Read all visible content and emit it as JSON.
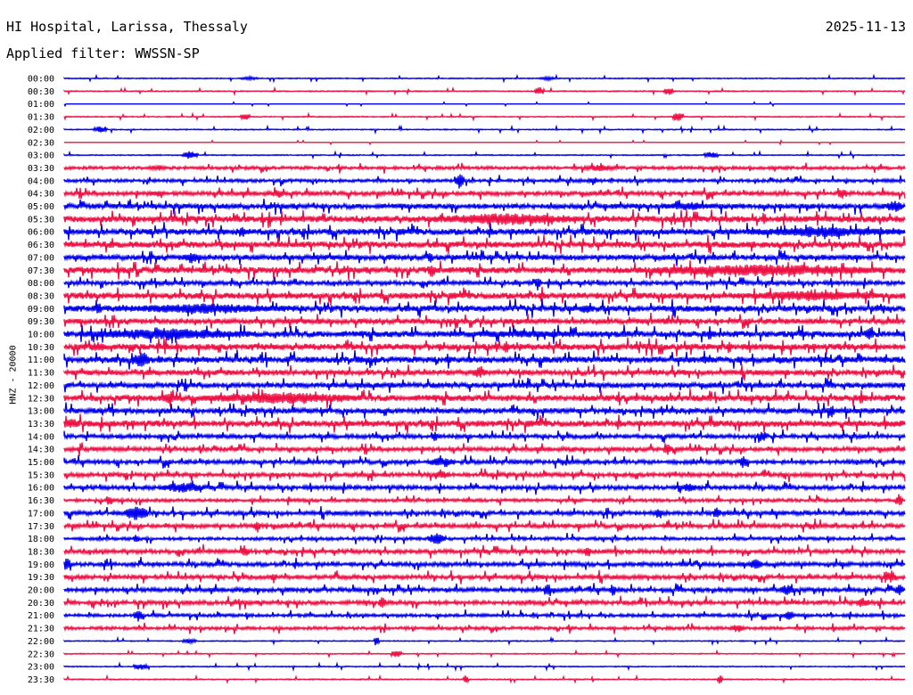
{
  "header": {
    "station": "HI Hospital, Larissa, Thessaly",
    "date": "2025-11-13",
    "filter_label": "Applied filter: WWSSN-SP"
  },
  "chart_data": {
    "type": "line",
    "title": "HI Hospital, Larissa, Thessaly",
    "date": "2025-11-13",
    "subtitle": "Applied filter: WWSSN-SP",
    "ylabel": "HNZ - 20000",
    "xlabel": "",
    "rows": [
      "00:00",
      "00:30",
      "01:00",
      "01:30",
      "02:00",
      "02:30",
      "03:00",
      "03:30",
      "04:00",
      "04:30",
      "05:00",
      "05:30",
      "06:00",
      "06:30",
      "07:00",
      "07:30",
      "08:00",
      "08:30",
      "09:00",
      "09:30",
      "10:00",
      "10:30",
      "11:00",
      "11:30",
      "12:00",
      "12:30",
      "13:00",
      "13:30",
      "14:00",
      "14:30",
      "15:00",
      "15:30",
      "16:00",
      "16:30",
      "17:00",
      "17:30",
      "18:00",
      "18:30",
      "19:00",
      "19:30",
      "20:00",
      "20:30",
      "21:00",
      "21:30",
      "22:00",
      "22:30",
      "23:00",
      "23:30"
    ],
    "colors": [
      "#0000ee",
      "#ee1144"
    ],
    "noise_level": [
      1,
      1,
      0,
      1,
      1,
      0,
      1,
      3,
      3,
      4,
      5,
      6,
      6,
      6,
      5,
      6,
      4,
      6,
      6,
      5,
      6,
      6,
      6,
      5,
      5,
      6,
      5,
      6,
      4,
      4,
      4,
      4,
      4,
      3,
      4,
      4,
      3,
      4,
      4,
      4,
      4,
      4,
      3,
      3,
      1,
      1,
      1,
      1
    ],
    "events": [
      {
        "row": 0,
        "x": [
          270,
          290
        ],
        "amp": 2
      },
      {
        "row": 0,
        "x": [
          605,
          625
        ],
        "amp": 2
      },
      {
        "row": 1,
        "x": [
          600,
          610
        ],
        "amp": 5
      },
      {
        "row": 1,
        "x": [
          745,
          755
        ],
        "amp": 5
      },
      {
        "row": 3,
        "x": [
          270,
          280
        ],
        "amp": 4
      },
      {
        "row": 3,
        "x": [
          755,
          765
        ],
        "amp": 6
      },
      {
        "row": 4,
        "x": [
          105,
          120
        ],
        "amp": 4
      },
      {
        "row": 6,
        "x": [
          205,
          222
        ],
        "amp": 5
      },
      {
        "row": 6,
        "x": [
          790,
          805
        ],
        "amp": 4
      },
      {
        "row": 7,
        "x": [
          170,
          185
        ],
        "amp": 4
      },
      {
        "row": 7,
        "x": [
          655,
          690
        ],
        "amp": 4
      },
      {
        "row": 8,
        "x": [
          510,
          520
        ],
        "amp": 9
      },
      {
        "row": 8,
        "x": [
          660,
          670
        ],
        "amp": 5
      },
      {
        "row": 9,
        "x": [
          165,
          185
        ],
        "amp": 4
      },
      {
        "row": 9,
        "x": [
          305,
          320
        ],
        "amp": 5
      },
      {
        "row": 9,
        "x": [
          940,
          950
        ],
        "amp": 6
      },
      {
        "row": 10,
        "x": [
          745,
          800
        ],
        "amp": 5
      },
      {
        "row": 10,
        "x": [
          995,
          1012
        ],
        "amp": 8
      },
      {
        "row": 11,
        "x": [
          480,
          650
        ],
        "amp": 7
      },
      {
        "row": 12,
        "x": [
          270,
          275
        ],
        "amp": 8
      },
      {
        "row": 12,
        "x": [
          835,
          1015
        ],
        "amp": 6
      },
      {
        "row": 12,
        "x": [
          905,
          912
        ],
        "amp": 9
      },
      {
        "row": 14,
        "x": [
          205,
          225
        ],
        "amp": 7
      },
      {
        "row": 14,
        "x": [
          480,
          485
        ],
        "amp": 8
      },
      {
        "row": 15,
        "x": [
          712,
          998
        ],
        "amp": 7
      },
      {
        "row": 15,
        "x": [
          480,
          488
        ],
        "amp": 9
      },
      {
        "row": 16,
        "x": [
          600,
          606
        ],
        "amp": 9
      },
      {
        "row": 17,
        "x": [
          820,
          998
        ],
        "amp": 6
      },
      {
        "row": 18,
        "x": [
          130,
          330
        ],
        "amp": 6
      },
      {
        "row": 18,
        "x": [
          108,
          112
        ],
        "amp": 10
      },
      {
        "row": 18,
        "x": [
          650,
          665
        ],
        "amp": 6
      },
      {
        "row": 19,
        "x": [
          735,
          760
        ],
        "amp": 4
      },
      {
        "row": 20,
        "x": [
          98,
          278
        ],
        "amp": 7
      },
      {
        "row": 20,
        "x": [
          495,
          670
        ],
        "amp": 4
      },
      {
        "row": 20,
        "x": [
          970,
          980
        ],
        "amp": 9
      },
      {
        "row": 21,
        "x": [
          100,
          118
        ],
        "amp": 6
      },
      {
        "row": 21,
        "x": [
          565,
          572
        ],
        "amp": 8
      },
      {
        "row": 22,
        "x": [
          148,
          168
        ],
        "amp": 9
      },
      {
        "row": 22,
        "x": [
          785,
          795
        ],
        "amp": 6
      },
      {
        "row": 23,
        "x": [
          530,
          545
        ],
        "amp": 7
      },
      {
        "row": 25,
        "x": [
          225,
          405
        ],
        "amp": 7
      },
      {
        "row": 25,
        "x": [
          178,
          200
        ],
        "amp": 6
      },
      {
        "row": 26,
        "x": [
          930,
          935
        ],
        "amp": 8
      },
      {
        "row": 27,
        "x": [
          72,
          90
        ],
        "amp": 6
      },
      {
        "row": 28,
        "x": [
          485,
          490
        ],
        "amp": 7
      },
      {
        "row": 28,
        "x": [
          850,
          860
        ],
        "amp": 7
      },
      {
        "row": 29,
        "x": [
          745,
          752
        ],
        "amp": 7
      },
      {
        "row": 30,
        "x": [
          480,
          510
        ],
        "amp": 6
      },
      {
        "row": 30,
        "x": [
          830,
          838
        ],
        "amp": 8
      },
      {
        "row": 31,
        "x": [
          485,
          505
        ],
        "amp": 5
      },
      {
        "row": 32,
        "x": [
          180,
          230
        ],
        "amp": 6
      },
      {
        "row": 32,
        "x": [
          765,
          780
        ],
        "amp": 6
      },
      {
        "row": 33,
        "x": [
          120,
          126
        ],
        "amp": 7
      },
      {
        "row": 33,
        "x": [
          1005,
          1012
        ],
        "amp": 8
      },
      {
        "row": 34,
        "x": [
          140,
          165
        ],
        "amp": 9
      },
      {
        "row": 34,
        "x": [
          735,
          742
        ],
        "amp": 7
      },
      {
        "row": 34,
        "x": [
          800,
          808
        ],
        "amp": 7
      },
      {
        "row": 35,
        "x": [
          285,
          292
        ],
        "amp": 8
      },
      {
        "row": 36,
        "x": [
          480,
          500
        ],
        "amp": 7
      },
      {
        "row": 36,
        "x": [
          150,
          155
        ],
        "amp": 7
      },
      {
        "row": 37,
        "x": [
          270,
          280
        ],
        "amp": 6
      },
      {
        "row": 37,
        "x": [
          655,
          662
        ],
        "amp": 8
      },
      {
        "row": 38,
        "x": [
          72,
          78
        ],
        "amp": 9
      },
      {
        "row": 38,
        "x": [
          840,
          855
        ],
        "amp": 6
      },
      {
        "row": 39,
        "x": [
          995,
          1005
        ],
        "amp": 8
      },
      {
        "row": 39,
        "x": [
          305,
          310
        ],
        "amp": 6
      },
      {
        "row": 40,
        "x": [
          610,
          616
        ],
        "amp": 8
      },
      {
        "row": 40,
        "x": [
          685,
          690
        ],
        "amp": 8
      },
      {
        "row": 40,
        "x": [
          875,
          890
        ],
        "amp": 6
      },
      {
        "row": 40,
        "x": [
          1005,
          1012
        ],
        "amp": 8
      },
      {
        "row": 41,
        "x": [
          425,
          432
        ],
        "amp": 8
      },
      {
        "row": 41,
        "x": [
          960,
          975
        ],
        "amp": 6
      },
      {
        "row": 42,
        "x": [
          150,
          160
        ],
        "amp": 7
      },
      {
        "row": 42,
        "x": [
          880,
          890
        ],
        "amp": 6
      },
      {
        "row": 43,
        "x": [
          820,
          835
        ],
        "amp": 5
      },
      {
        "row": 44,
        "x": [
          420,
          425
        ],
        "amp": 7
      },
      {
        "row": 44,
        "x": [
          205,
          220
        ],
        "amp": 3
      },
      {
        "row": 45,
        "x": [
          440,
          450
        ],
        "amp": 5
      },
      {
        "row": 46,
        "x": [
          150,
          165
        ],
        "amp": 4
      },
      {
        "row": 47,
        "x": [
          520,
          525
        ],
        "amp": 5
      },
      {
        "row": 47,
        "x": [
          805,
          810
        ],
        "amp": 5
      }
    ]
  }
}
